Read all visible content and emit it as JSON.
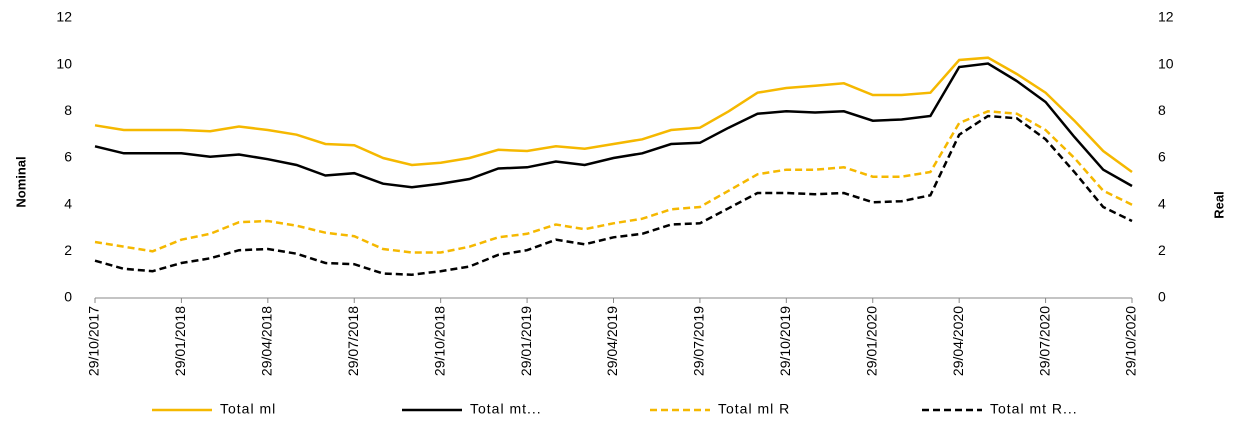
{
  "chart_data": {
    "type": "line",
    "y_label": "Nominal",
    "y2_label": "Real",
    "categories": [
      "29/10/2017",
      null,
      null,
      "29/01/2018",
      null,
      null,
      "29/04/2018",
      null,
      null,
      "29/07/2018",
      null,
      null,
      "29/10/2018",
      null,
      null,
      "29/01/2019",
      null,
      null,
      "29/04/2019",
      null,
      null,
      "29/07/2019",
      null,
      null,
      "29/10/2019",
      null,
      null,
      "29/01/2020",
      null,
      null,
      "29/04/2020",
      null,
      null,
      "29/07/2020",
      null,
      null,
      "29/10/2020"
    ],
    "ylim": [
      0,
      12
    ],
    "yticks": [
      0,
      2,
      4,
      6,
      8,
      10,
      12
    ],
    "y2lim": [
      0,
      12
    ],
    "y2ticks": [
      0,
      2,
      4,
      6,
      8,
      10,
      12
    ],
    "legend": "bottom",
    "series": [
      {
        "name": "Total ml",
        "color": "#f5b800",
        "dash": false,
        "values": [
          7.4,
          7.2,
          7.2,
          7.2,
          7.15,
          7.35,
          7.2,
          7.0,
          6.6,
          6.55,
          6.0,
          5.7,
          5.8,
          6.0,
          6.35,
          6.3,
          6.5,
          6.4,
          6.6,
          6.8,
          7.2,
          7.3,
          8.0,
          8.8,
          9.0,
          9.1,
          9.2,
          8.7,
          8.7,
          8.8,
          10.2,
          10.3,
          9.6,
          8.8,
          7.6,
          6.3,
          5.4
        ]
      },
      {
        "name": "Total mt...",
        "color": "#000000",
        "dash": false,
        "values": [
          6.5,
          6.2,
          6.2,
          6.2,
          6.05,
          6.15,
          5.95,
          5.7,
          5.25,
          5.35,
          4.9,
          4.75,
          4.9,
          5.1,
          5.55,
          5.6,
          5.85,
          5.7,
          6.0,
          6.2,
          6.6,
          6.65,
          7.3,
          7.9,
          8.0,
          7.95,
          8.0,
          7.6,
          7.65,
          7.8,
          9.9,
          10.05,
          9.3,
          8.4,
          6.9,
          5.5,
          4.8
        ]
      },
      {
        "name": "Total ml R",
        "color": "#f5b800",
        "dash": true,
        "axis": "y2",
        "values": [
          2.4,
          2.2,
          2.0,
          2.5,
          2.75,
          3.25,
          3.3,
          3.1,
          2.8,
          2.65,
          2.1,
          1.95,
          1.95,
          2.2,
          2.6,
          2.75,
          3.15,
          2.95,
          3.2,
          3.4,
          3.8,
          3.9,
          4.6,
          5.3,
          5.5,
          5.5,
          5.6,
          5.2,
          5.2,
          5.4,
          7.5,
          8.0,
          7.9,
          7.2,
          6.0,
          4.6,
          4.0
        ]
      },
      {
        "name": "Total mt R...",
        "color": "#000000",
        "dash": true,
        "axis": "y2",
        "values": [
          1.6,
          1.25,
          1.15,
          1.5,
          1.7,
          2.05,
          2.1,
          1.9,
          1.5,
          1.45,
          1.05,
          1.0,
          1.15,
          1.35,
          1.85,
          2.05,
          2.5,
          2.3,
          2.6,
          2.75,
          3.15,
          3.2,
          3.85,
          4.5,
          4.5,
          4.45,
          4.5,
          4.1,
          4.15,
          4.4,
          7.0,
          7.8,
          7.7,
          6.8,
          5.4,
          3.9,
          3.3
        ]
      }
    ]
  }
}
